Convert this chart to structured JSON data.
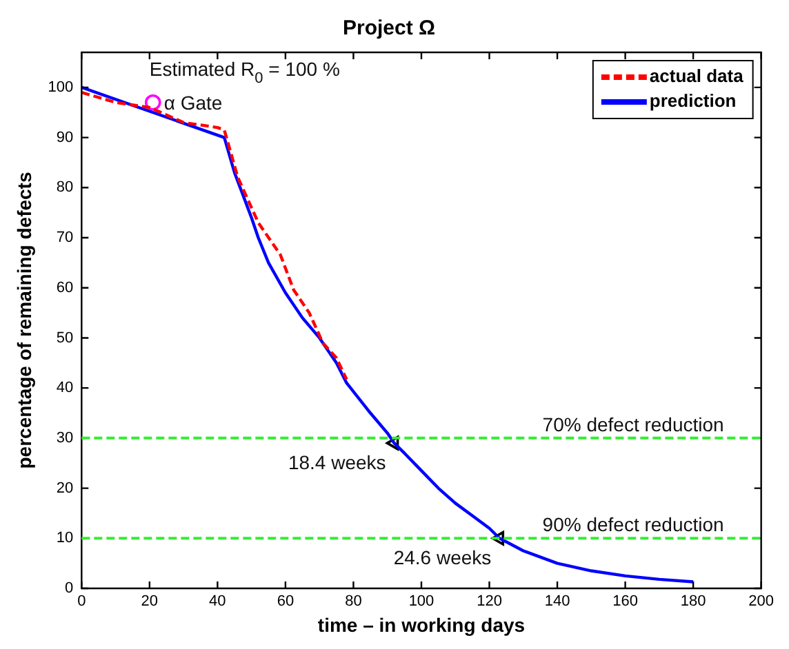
{
  "chart_data": {
    "type": "line",
    "title": "Project Ω",
    "xlabel": "time – in working days",
    "ylabel": "percentage of remaining defects",
    "xlim": [
      0,
      200
    ],
    "xticks": [
      0,
      20,
      40,
      60,
      80,
      100,
      120,
      140,
      160,
      180,
      200
    ],
    "ylim": [
      0,
      107
    ],
    "yticks": [
      0,
      10,
      20,
      30,
      40,
      50,
      60,
      70,
      80,
      90,
      100
    ],
    "grid": false,
    "legend": "top right",
    "series": [
      {
        "name": "actual data",
        "color": "#ff0000",
        "line_style": "dashed",
        "marker": "none",
        "x": [
          0,
          10,
          20,
          30,
          40,
          42,
          46,
          52,
          58.5,
          62.4,
          67,
          71,
          75,
          78
        ],
        "values": [
          99,
          97,
          96,
          93,
          92,
          91.5,
          82,
          73,
          66.6,
          59.6,
          55,
          49,
          46,
          41.7
        ]
      },
      {
        "name": "prediction",
        "color": "#0000ff",
        "line_style": "solid",
        "marker": "none",
        "x": [
          0,
          42,
          45,
          50,
          52,
          55,
          60,
          65,
          70,
          75,
          78,
          85,
          90,
          92,
          95,
          100,
          105,
          110,
          115,
          120,
          123,
          130,
          140,
          150,
          160,
          170,
          180
        ],
        "values": [
          100,
          90,
          83,
          74,
          70,
          65,
          59,
          54,
          50,
          45,
          41,
          35,
          31,
          29,
          27,
          23.5,
          20,
          17,
          14.5,
          12,
          10,
          7.5,
          5,
          3.5,
          2.5,
          1.8,
          1.3
        ]
      },
      {
        "type": "scatter",
        "color": "#ff00ff",
        "marker": "circle",
        "x": [
          21
        ],
        "values": [
          97
        ]
      },
      {
        "type": "scatter",
        "color": "#000000",
        "marker": "triangle",
        "x": [
          92,
          123
        ],
        "values": [
          29,
          10
        ]
      }
    ],
    "ref_lines": [
      {
        "axis": "y",
        "value": 30,
        "label": "70% defect reduction",
        "color": "#33ee33",
        "line_style": "dashed"
      },
      {
        "axis": "y",
        "value": 10,
        "label": "90% defect reduction",
        "color": "#33ee33",
        "line_style": "dashed"
      }
    ],
    "annotations": [
      "Estimated R$_{0}$ = 100 %",
      {
        "text": "α Gate",
        "x": 21,
        "y": 97
      },
      {
        "text": "18.4 weeks",
        "x": 92,
        "y": 29
      },
      {
        "text": "24.6 weeks",
        "x": 123,
        "y": 10
      }
    ]
  }
}
